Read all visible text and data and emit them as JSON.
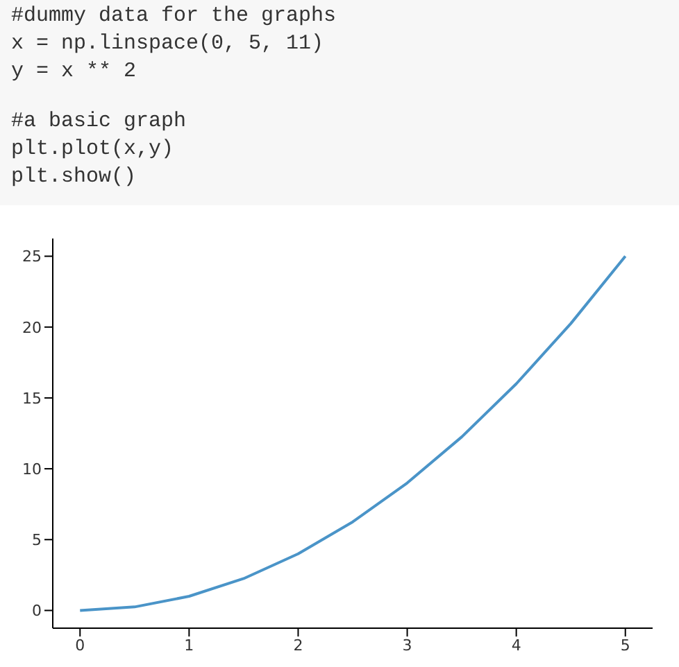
{
  "chart_data": [
    {
      "type": "other",
      "annotations": [
        "#dummy data for the graphs",
        "x = np.linspace(0, 5, 11)",
        "y = x ** 2",
        "#a basic graph",
        "plt.plot(x,y)",
        "plt.show()"
      ]
    },
    {
      "type": "line",
      "x": [
        0,
        0.5,
        1,
        1.5,
        2,
        2.5,
        3,
        3.5,
        4,
        4.5,
        5
      ],
      "series": [
        {
          "color": "#4a94c8",
          "values": [
            0,
            0.25,
            1,
            2.25,
            4,
            6.25,
            9,
            12.25,
            16,
            20.25,
            25
          ]
        }
      ],
      "xlim": [
        -0.25,
        5.25
      ],
      "ylim": [
        -1.25,
        26.25
      ],
      "xticks": [
        0,
        1,
        2,
        3,
        4,
        5
      ],
      "yticks": [
        0,
        5,
        10,
        15,
        20,
        25
      ],
      "grid": false,
      "legend": false,
      "marker": "none",
      "line_style": "solid"
    }
  ]
}
